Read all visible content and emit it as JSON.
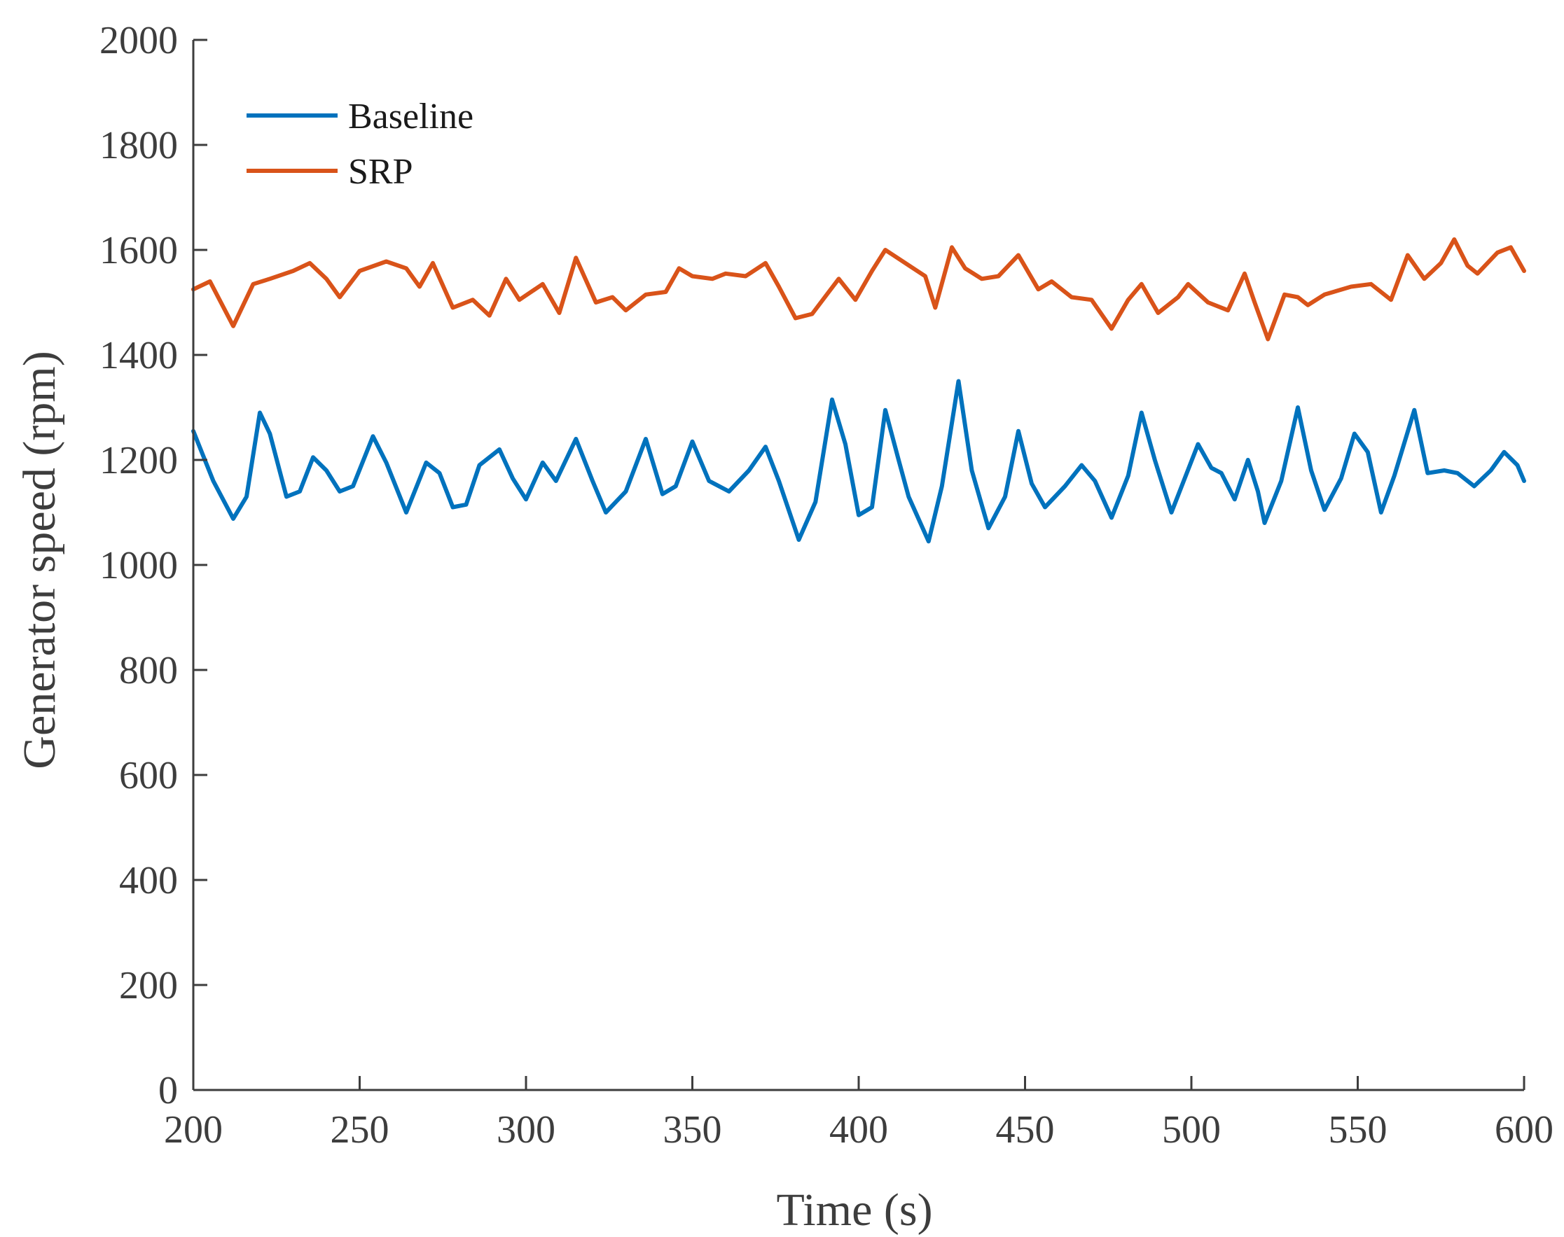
{
  "chart_data": {
    "type": "line",
    "title": "",
    "xlabel": "Time (s)",
    "ylabel": "Generator speed (rpm)",
    "xlim": [
      200,
      600
    ],
    "ylim": [
      0,
      2000
    ],
    "xticks": [
      200,
      250,
      300,
      350,
      400,
      450,
      500,
      550,
      600
    ],
    "yticks": [
      0,
      200,
      400,
      600,
      800,
      1000,
      1200,
      1400,
      1600,
      1800,
      2000
    ],
    "grid": false,
    "legend_position": "top-left",
    "series": [
      {
        "name": "Baseline",
        "color": "#0072BD",
        "points": [
          [
            200,
            1255
          ],
          [
            206,
            1160
          ],
          [
            212,
            1088
          ],
          [
            216,
            1130
          ],
          [
            220,
            1290
          ],
          [
            223,
            1250
          ],
          [
            228,
            1130
          ],
          [
            232,
            1140
          ],
          [
            236,
            1205
          ],
          [
            240,
            1180
          ],
          [
            244,
            1140
          ],
          [
            248,
            1150
          ],
          [
            254,
            1245
          ],
          [
            258,
            1195
          ],
          [
            264,
            1100
          ],
          [
            270,
            1195
          ],
          [
            274,
            1175
          ],
          [
            278,
            1110
          ],
          [
            282,
            1115
          ],
          [
            286,
            1190
          ],
          [
            292,
            1220
          ],
          [
            296,
            1165
          ],
          [
            300,
            1125
          ],
          [
            305,
            1195
          ],
          [
            309,
            1160
          ],
          [
            315,
            1240
          ],
          [
            320,
            1160
          ],
          [
            324,
            1100
          ],
          [
            330,
            1140
          ],
          [
            336,
            1240
          ],
          [
            341,
            1135
          ],
          [
            345,
            1150
          ],
          [
            350,
            1235
          ],
          [
            355,
            1160
          ],
          [
            361,
            1140
          ],
          [
            367,
            1180
          ],
          [
            372,
            1225
          ],
          [
            376,
            1160
          ],
          [
            382,
            1048
          ],
          [
            387,
            1120
          ],
          [
            392,
            1315
          ],
          [
            396,
            1230
          ],
          [
            400,
            1095
          ],
          [
            404,
            1110
          ],
          [
            408,
            1295
          ],
          [
            412,
            1200
          ],
          [
            415,
            1130
          ],
          [
            421,
            1045
          ],
          [
            425,
            1150
          ],
          [
            430,
            1350
          ],
          [
            434,
            1180
          ],
          [
            439,
            1070
          ],
          [
            444,
            1130
          ],
          [
            448,
            1255
          ],
          [
            452,
            1155
          ],
          [
            456,
            1110
          ],
          [
            462,
            1150
          ],
          [
            467,
            1190
          ],
          [
            471,
            1160
          ],
          [
            476,
            1090
          ],
          [
            481,
            1170
          ],
          [
            485,
            1290
          ],
          [
            489,
            1200
          ],
          [
            494,
            1100
          ],
          [
            498,
            1165
          ],
          [
            502,
            1230
          ],
          [
            506,
            1185
          ],
          [
            509,
            1175
          ],
          [
            513,
            1125
          ],
          [
            517,
            1200
          ],
          [
            520,
            1140
          ],
          [
            522,
            1080
          ],
          [
            527,
            1160
          ],
          [
            532,
            1300
          ],
          [
            536,
            1180
          ],
          [
            540,
            1105
          ],
          [
            545,
            1165
          ],
          [
            549,
            1250
          ],
          [
            553,
            1215
          ],
          [
            557,
            1100
          ],
          [
            561,
            1170
          ],
          [
            567,
            1295
          ],
          [
            571,
            1175
          ],
          [
            576,
            1180
          ],
          [
            580,
            1175
          ],
          [
            585,
            1150
          ],
          [
            590,
            1180
          ],
          [
            594,
            1215
          ],
          [
            598,
            1190
          ],
          [
            600,
            1160
          ]
        ]
      },
      {
        "name": "SRP",
        "color": "#D95319",
        "points": [
          [
            200,
            1525
          ],
          [
            205,
            1540
          ],
          [
            212,
            1455
          ],
          [
            218,
            1535
          ],
          [
            223,
            1545
          ],
          [
            230,
            1560
          ],
          [
            235,
            1575
          ],
          [
            240,
            1545
          ],
          [
            244,
            1510
          ],
          [
            250,
            1560
          ],
          [
            258,
            1578
          ],
          [
            264,
            1565
          ],
          [
            268,
            1530
          ],
          [
            272,
            1575
          ],
          [
            278,
            1490
          ],
          [
            284,
            1505
          ],
          [
            289,
            1475
          ],
          [
            294,
            1545
          ],
          [
            298,
            1505
          ],
          [
            305,
            1535
          ],
          [
            310,
            1480
          ],
          [
            315,
            1585
          ],
          [
            321,
            1500
          ],
          [
            326,
            1510
          ],
          [
            330,
            1485
          ],
          [
            336,
            1515
          ],
          [
            342,
            1520
          ],
          [
            346,
            1565
          ],
          [
            350,
            1550
          ],
          [
            356,
            1545
          ],
          [
            360,
            1555
          ],
          [
            366,
            1550
          ],
          [
            372,
            1575
          ],
          [
            376,
            1530
          ],
          [
            381,
            1470
          ],
          [
            386,
            1478
          ],
          [
            391,
            1520
          ],
          [
            394,
            1545
          ],
          [
            399,
            1505
          ],
          [
            404,
            1560
          ],
          [
            408,
            1600
          ],
          [
            414,
            1575
          ],
          [
            420,
            1550
          ],
          [
            423,
            1490
          ],
          [
            428,
            1605
          ],
          [
            432,
            1565
          ],
          [
            437,
            1545
          ],
          [
            442,
            1550
          ],
          [
            448,
            1590
          ],
          [
            454,
            1525
          ],
          [
            458,
            1540
          ],
          [
            464,
            1510
          ],
          [
            470,
            1505
          ],
          [
            476,
            1450
          ],
          [
            481,
            1505
          ],
          [
            485,
            1535
          ],
          [
            490,
            1480
          ],
          [
            496,
            1510
          ],
          [
            499,
            1535
          ],
          [
            505,
            1500
          ],
          [
            511,
            1485
          ],
          [
            516,
            1555
          ],
          [
            519,
            1500
          ],
          [
            523,
            1430
          ],
          [
            528,
            1515
          ],
          [
            532,
            1510
          ],
          [
            535,
            1495
          ],
          [
            540,
            1515
          ],
          [
            548,
            1530
          ],
          [
            554,
            1535
          ],
          [
            560,
            1505
          ],
          [
            565,
            1590
          ],
          [
            570,
            1545
          ],
          [
            575,
            1575
          ],
          [
            579,
            1620
          ],
          [
            583,
            1570
          ],
          [
            586,
            1555
          ],
          [
            592,
            1595
          ],
          [
            596,
            1605
          ],
          [
            600,
            1560
          ]
        ]
      }
    ]
  }
}
